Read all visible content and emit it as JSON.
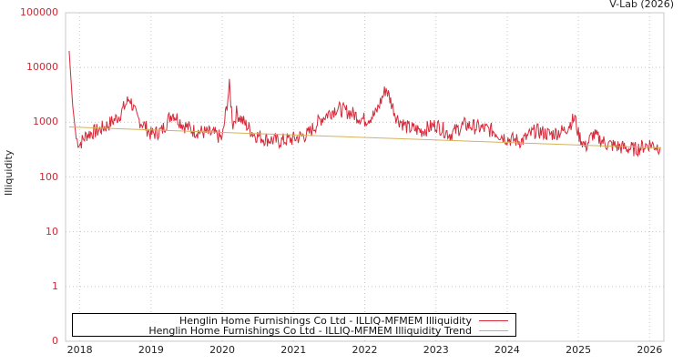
{
  "chart_data": {
    "type": "line",
    "title": "",
    "credit": "V-Lab (2026)",
    "xlabel": "",
    "ylabel": "Illiquidity",
    "yscale": "log",
    "ylim": [
      0.1,
      100000
    ],
    "y_ticks": [
      "100000",
      "10000",
      "1000",
      "100",
      "10",
      "1",
      "0"
    ],
    "x_ticks": [
      "2018",
      "2019",
      "2020",
      "2021",
      "2022",
      "2023",
      "2024",
      "2025",
      "2026"
    ],
    "grid": true,
    "legend_position": "bottom-left inside",
    "series": [
      {
        "name": "Henglin Home Furnishings Co Ltd - ILLIQ-MFMEM Illiquidity",
        "color": "#d62a3a",
        "x": [
          2017.85,
          2017.9,
          2017.95,
          2018.0,
          2018.1,
          2018.25,
          2018.4,
          2018.55,
          2018.7,
          2018.8,
          2018.9,
          2019.0,
          2019.15,
          2019.3,
          2019.45,
          2019.6,
          2019.75,
          2019.9,
          2020.0,
          2020.1,
          2020.15,
          2020.2,
          2020.3,
          2020.45,
          2020.6,
          2020.8,
          2021.0,
          2021.2,
          2021.4,
          2021.6,
          2021.8,
          2022.0,
          2022.15,
          2022.3,
          2022.45,
          2022.6,
          2022.8,
          2023.0,
          2023.2,
          2023.4,
          2023.6,
          2023.8,
          2024.0,
          2024.2,
          2024.4,
          2024.6,
          2024.8,
          2024.95,
          2025.0,
          2025.1,
          2025.2,
          2025.4,
          2025.6,
          2025.8,
          2026.0,
          2026.15
        ],
        "values": [
          20000,
          2000,
          500,
          400,
          600,
          700,
          900,
          1300,
          2800,
          1200,
          900,
          600,
          700,
          1500,
          900,
          700,
          650,
          600,
          500,
          4500,
          900,
          1500,
          1000,
          600,
          500,
          450,
          500,
          600,
          1200,
          1800,
          1500,
          1100,
          1400,
          4200,
          1200,
          800,
          700,
          900,
          600,
          900,
          800,
          700,
          500,
          450,
          700,
          600,
          700,
          1200,
          600,
          350,
          600,
          400,
          350,
          320,
          400,
          350
        ]
      },
      {
        "name": "Henglin Home Furnishings Co Ltd - ILLIQ-MFMEM Illiquidity Trend",
        "color": "#d4b25c",
        "x": [
          2017.85,
          2026.15
        ],
        "values": [
          820,
          340
        ]
      }
    ]
  }
}
